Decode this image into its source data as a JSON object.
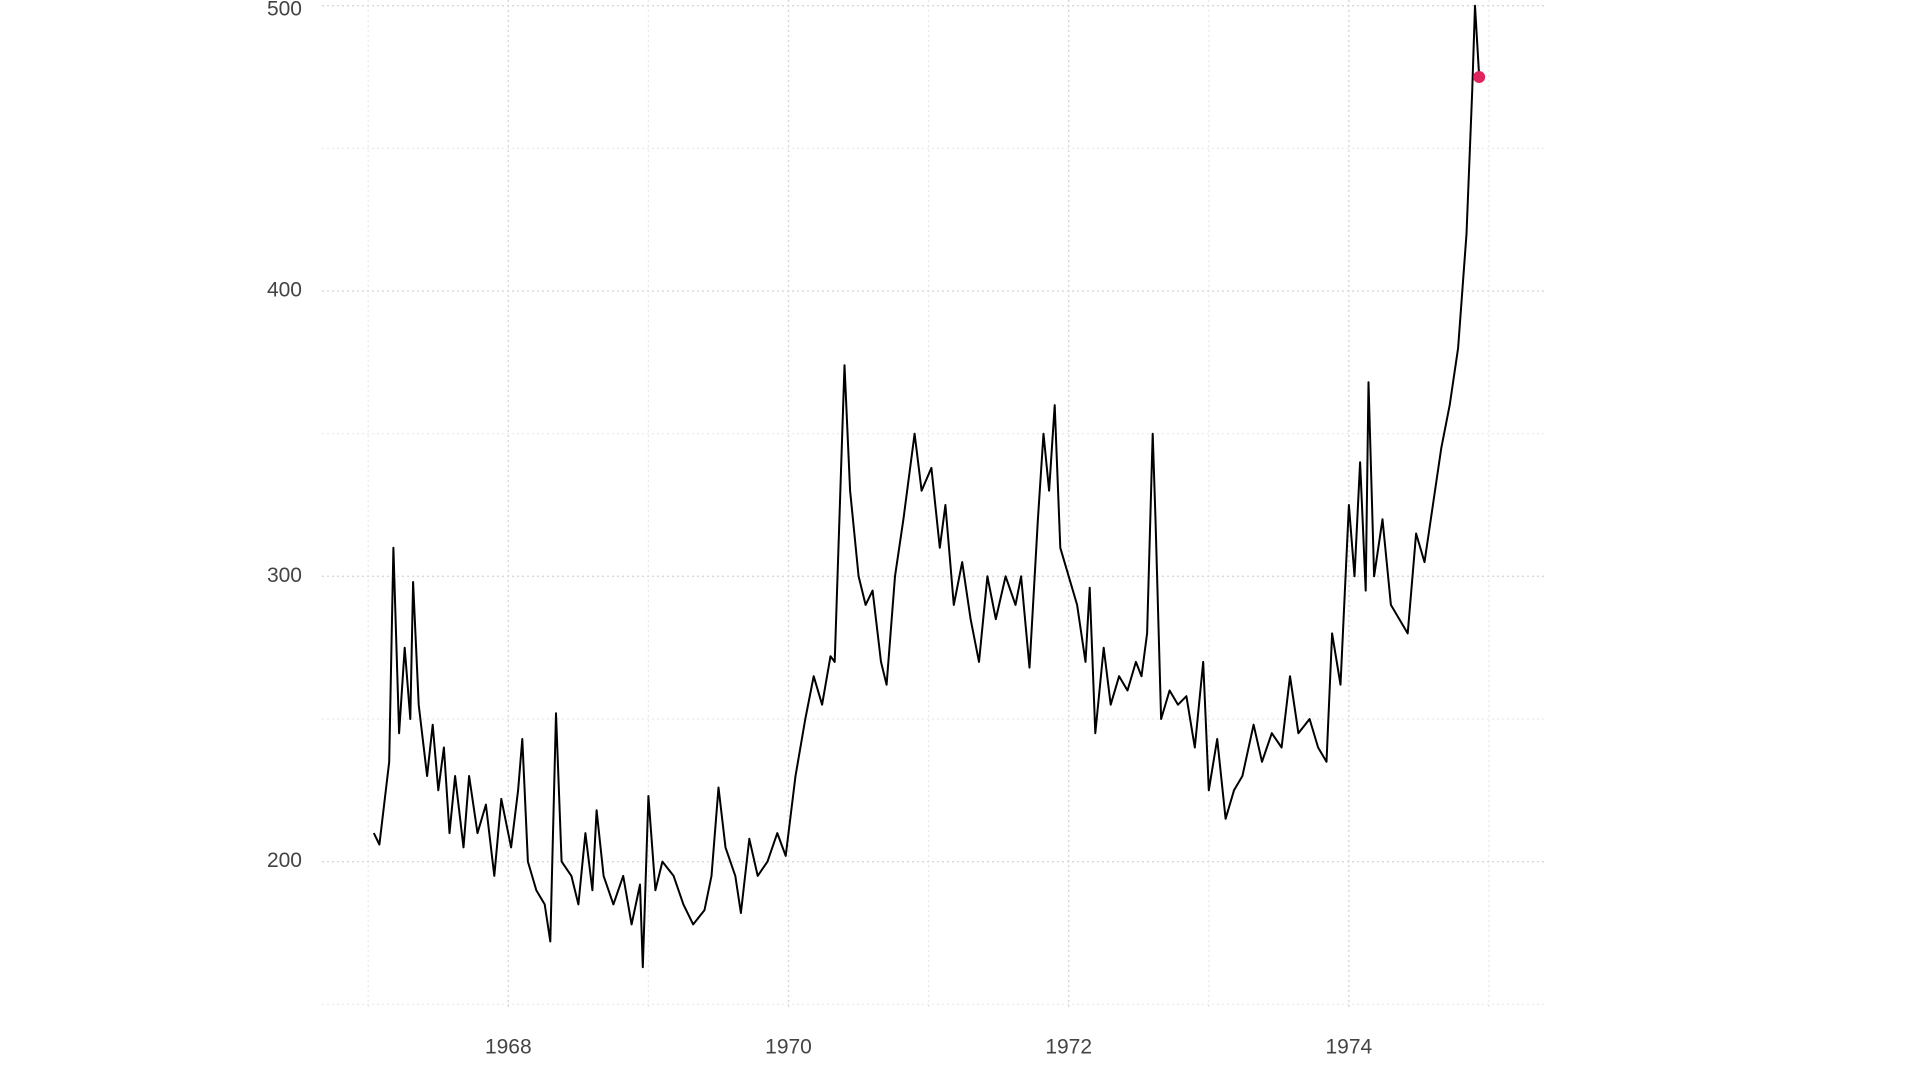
{
  "chart_data": {
    "type": "line",
    "xlim": [
      1966.67,
      1975.4
    ],
    "ylim": [
      148,
      502
    ],
    "xticks": [
      1968,
      1970,
      1972,
      1974
    ],
    "yticks": [
      200,
      300,
      400,
      500
    ],
    "minor_xticks": [
      1967,
      1969,
      1971,
      1973,
      1975
    ],
    "minor_yticks": [
      150,
      250,
      350,
      450
    ],
    "grid": true,
    "highlight_last": true,
    "highlight_color": "#e0245e",
    "series": [
      {
        "color": "#000000",
        "x": [
          1967.04,
          1967.08,
          1967.15,
          1967.18,
          1967.22,
          1967.26,
          1967.3,
          1967.32,
          1967.36,
          1967.42,
          1967.46,
          1967.5,
          1967.54,
          1967.58,
          1967.62,
          1967.68,
          1967.72,
          1967.78,
          1967.84,
          1967.9,
          1967.95,
          1968.02,
          1968.07,
          1968.1,
          1968.14,
          1968.2,
          1968.26,
          1968.3,
          1968.34,
          1968.38,
          1968.45,
          1968.5,
          1968.55,
          1968.6,
          1968.63,
          1968.68,
          1968.75,
          1968.82,
          1968.88,
          1968.94,
          1968.96,
          1969.0,
          1969.05,
          1969.1,
          1969.18,
          1969.25,
          1969.32,
          1969.4,
          1969.45,
          1969.5,
          1969.55,
          1969.62,
          1969.66,
          1969.72,
          1969.78,
          1969.85,
          1969.92,
          1969.98,
          1970.05,
          1970.12,
          1970.18,
          1970.24,
          1970.3,
          1970.33,
          1970.4,
          1970.44,
          1970.5,
          1970.55,
          1970.6,
          1970.66,
          1970.7,
          1970.76,
          1970.82,
          1970.9,
          1970.95,
          1971.02,
          1971.08,
          1971.12,
          1971.18,
          1971.24,
          1971.3,
          1971.36,
          1971.42,
          1971.48,
          1971.55,
          1971.62,
          1971.66,
          1971.72,
          1971.78,
          1971.82,
          1971.86,
          1971.9,
          1971.94,
          1972.0,
          1972.06,
          1972.12,
          1972.15,
          1972.19,
          1972.25,
          1972.3,
          1972.36,
          1972.42,
          1972.48,
          1972.52,
          1972.56,
          1972.6,
          1972.62,
          1972.66,
          1972.72,
          1972.78,
          1972.84,
          1972.9,
          1972.96,
          1973.0,
          1973.06,
          1973.12,
          1973.18,
          1973.24,
          1973.32,
          1973.38,
          1973.45,
          1973.52,
          1973.58,
          1973.64,
          1973.72,
          1973.78,
          1973.84,
          1973.88,
          1973.94,
          1974.0,
          1974.04,
          1974.08,
          1974.12,
          1974.14,
          1974.18,
          1974.24,
          1974.3,
          1974.36,
          1974.42,
          1974.48,
          1974.54,
          1974.6,
          1974.66,
          1974.72,
          1974.78,
          1974.84,
          1974.88,
          1974.9,
          1974.93
        ],
        "values": [
          210,
          206,
          235,
          310,
          245,
          275,
          250,
          298,
          255,
          230,
          248,
          225,
          240,
          210,
          230,
          205,
          230,
          210,
          220,
          195,
          222,
          205,
          225,
          243,
          200,
          190,
          185,
          172,
          252,
          200,
          195,
          185,
          210,
          190,
          218,
          195,
          185,
          195,
          178,
          192,
          163,
          223,
          190,
          200,
          195,
          185,
          178,
          183,
          195,
          226,
          205,
          195,
          182,
          208,
          195,
          200,
          210,
          202,
          230,
          250,
          265,
          255,
          272,
          270,
          374,
          330,
          300,
          290,
          295,
          270,
          262,
          300,
          320,
          350,
          330,
          338,
          310,
          325,
          290,
          305,
          285,
          270,
          300,
          285,
          300,
          290,
          300,
          268,
          320,
          350,
          330,
          360,
          310,
          300,
          290,
          270,
          296,
          245,
          275,
          255,
          265,
          260,
          270,
          265,
          280,
          350,
          320,
          250,
          260,
          255,
          258,
          240,
          270,
          225,
          243,
          215,
          225,
          230,
          248,
          235,
          245,
          240,
          265,
          245,
          250,
          240,
          235,
          280,
          262,
          325,
          300,
          340,
          295,
          368,
          300,
          320,
          290,
          285,
          280,
          315,
          305,
          325,
          345,
          360,
          380,
          420,
          470,
          500,
          475
        ]
      }
    ]
  }
}
